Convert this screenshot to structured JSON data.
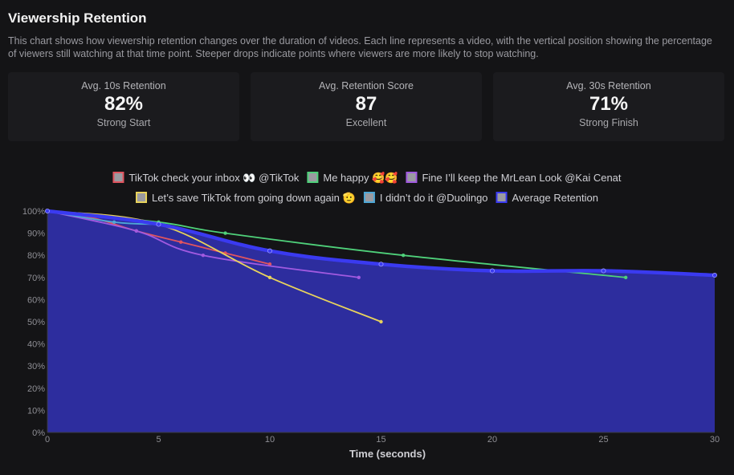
{
  "page": {
    "title": "Viewership Retention",
    "description": "This chart shows how viewership retention changes over the duration of videos. Each line represents a video, with the vertical position showing the percentage of viewers still watching at that time point. Steeper drops indicate points where viewers are more likely to stop watching."
  },
  "cards": [
    {
      "label": "Avg. 10s Retention",
      "value": "82%",
      "sub": "Strong Start"
    },
    {
      "label": "Avg. Retention Score",
      "value": "87",
      "sub": "Excellent"
    },
    {
      "label": "Avg. 30s Retention",
      "value": "71%",
      "sub": "Strong Finish"
    }
  ],
  "chart_data": {
    "type": "line",
    "xlabel": "Time (seconds)",
    "ylabel": "",
    "xlim": [
      0,
      30
    ],
    "ylim": [
      0,
      100
    ],
    "x_ticks": [
      "0",
      "5",
      "10",
      "15",
      "20",
      "25",
      "30"
    ],
    "y_ticks": [
      "0%",
      "10%",
      "20%",
      "30%",
      "40%",
      "50%",
      "60%",
      "70%",
      "80%",
      "90%",
      "100%"
    ],
    "grid": false,
    "legend": "top",
    "series": [
      {
        "name": "TikTok check your inbox 👀 @TikTok",
        "color": "#e0545f",
        "points": [
          [
            0,
            100
          ],
          [
            2,
            97
          ],
          [
            4,
            91
          ],
          [
            6,
            86
          ],
          [
            8,
            81
          ],
          [
            10,
            76
          ]
        ]
      },
      {
        "name": "Me happy 🥰🥰",
        "color": "#4fd17a",
        "points": [
          [
            0,
            100
          ],
          [
            5,
            95
          ],
          [
            8,
            90
          ],
          [
            16,
            80
          ],
          [
            26,
            70
          ]
        ]
      },
      {
        "name": "Fine I’ll keep the MrLean Look @Kai Cenat",
        "color": "#a15ae0",
        "points": [
          [
            0,
            100
          ],
          [
            4,
            91
          ],
          [
            7,
            80
          ],
          [
            14,
            70
          ]
        ]
      },
      {
        "name": "Let’s save TikTok from going down again 🫡",
        "color": "#e8d35c",
        "points": [
          [
            0,
            100
          ],
          [
            5,
            94
          ],
          [
            10,
            70
          ],
          [
            15,
            50
          ]
        ]
      },
      {
        "name": "I didn’t do it @Duolingo",
        "color": "#4ea7d6",
        "points": [
          [
            0,
            100
          ],
          [
            3,
            95
          ],
          [
            5,
            94
          ]
        ]
      },
      {
        "name": "Average Retention",
        "color": "#3a3af0",
        "fill": "#2d2d9e",
        "points": [
          [
            0,
            100
          ],
          [
            5,
            94
          ],
          [
            10,
            82
          ],
          [
            15,
            76
          ],
          [
            20,
            73
          ],
          [
            25,
            73
          ],
          [
            30,
            71
          ]
        ]
      }
    ]
  }
}
